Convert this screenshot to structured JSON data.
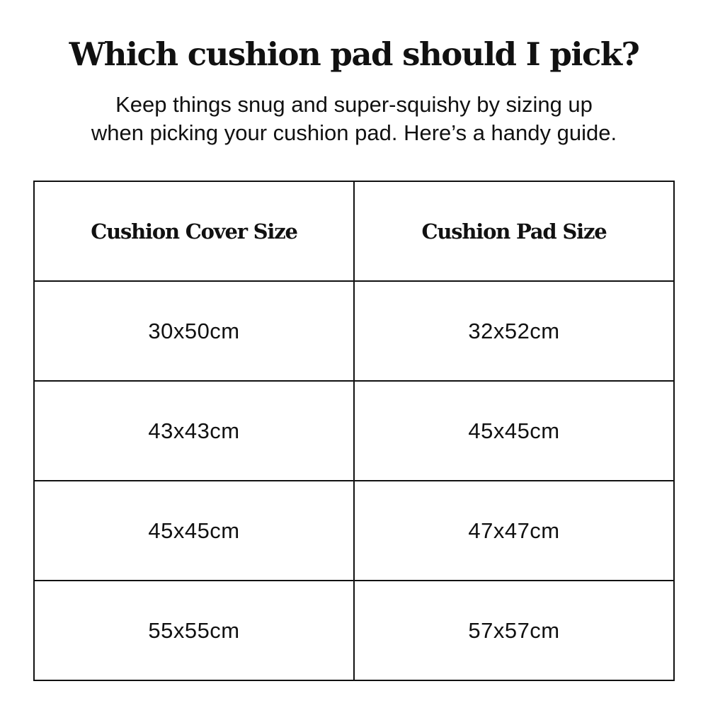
{
  "title": "Which cushion pad should I pick?",
  "subtitle": {
    "line1": "Keep things snug and super-squishy by sizing up",
    "line2": "when picking your cushion pad. Here’s a handy guide."
  },
  "table": {
    "headers": [
      "Cushion Cover Size",
      "Cushion Pad Size"
    ],
    "rows": [
      [
        "30x50cm",
        "32x52cm"
      ],
      [
        "43x43cm",
        "45x45cm"
      ],
      [
        "45x45cm",
        "47x47cm"
      ],
      [
        "55x55cm",
        "57x57cm"
      ]
    ]
  }
}
